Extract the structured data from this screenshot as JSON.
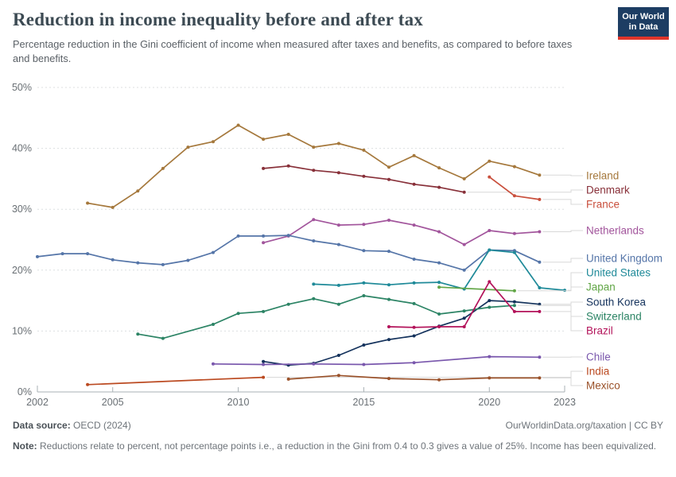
{
  "header": {
    "title": "Reduction in income inequality before and after tax",
    "subtitle": "Percentage reduction in the Gini coefficient of income when measured after taxes and benefits, as compared to before taxes and benefits.",
    "logo": {
      "line1": "Our World",
      "line2": "in Data"
    }
  },
  "footer": {
    "datasource_label": "Data source:",
    "datasource_value": " OECD (2024)",
    "link": "OurWorldinData.org/taxation",
    "separator": " | ",
    "license": "CC BY",
    "note_label": "Note:",
    "note_text": " Reductions relate to percent, not percentage points i.e., a reduction in the Gini from 0.4 to 0.3 gives a value of 25%. Income has been equivalized."
  },
  "chart_data": {
    "type": "line",
    "title": "Reduction in income inequality before and after tax",
    "xlabel": "",
    "ylabel": "",
    "xlim": [
      2002,
      2023
    ],
    "ylim": [
      0,
      50
    ],
    "x_ticks": [
      2002,
      2005,
      2010,
      2015,
      2020,
      2023
    ],
    "y_ticks": [
      0,
      10,
      20,
      30,
      40,
      50
    ],
    "y_tick_suffix": "%",
    "grid": "horizontal-dashed",
    "legend_position": "right",
    "series": [
      {
        "name": "Ireland",
        "color": "#A5783C",
        "points": [
          [
            2004,
            31.0
          ],
          [
            2005,
            30.3
          ],
          [
            2006,
            33.0
          ],
          [
            2007,
            36.7
          ],
          [
            2008,
            40.2
          ],
          [
            2009,
            41.1
          ],
          [
            2010,
            43.8
          ],
          [
            2011,
            41.5
          ],
          [
            2012,
            42.3
          ],
          [
            2013,
            40.2
          ],
          [
            2014,
            40.8
          ],
          [
            2015,
            39.7
          ],
          [
            2016,
            36.9
          ],
          [
            2017,
            38.8
          ],
          [
            2018,
            36.8
          ],
          [
            2019,
            35.0
          ],
          [
            2020,
            37.9
          ],
          [
            2021,
            37.0
          ],
          [
            2022,
            35.6
          ]
        ]
      },
      {
        "name": "Denmark",
        "color": "#883039",
        "points": [
          [
            2011,
            36.7
          ],
          [
            2012,
            37.1
          ],
          [
            2013,
            36.4
          ],
          [
            2014,
            36.0
          ],
          [
            2015,
            35.4
          ],
          [
            2016,
            34.9
          ],
          [
            2017,
            34.1
          ],
          [
            2018,
            33.6
          ],
          [
            2019,
            32.8
          ]
        ]
      },
      {
        "name": "France",
        "color": "#C94F3C",
        "points": [
          [
            2020,
            35.3
          ],
          [
            2021,
            32.2
          ],
          [
            2022,
            31.6
          ]
        ]
      },
      {
        "name": "Netherlands",
        "color": "#A2559C",
        "points": [
          [
            2011,
            24.5
          ],
          [
            2012,
            25.6
          ],
          [
            2013,
            28.3
          ],
          [
            2014,
            27.4
          ],
          [
            2015,
            27.5
          ],
          [
            2016,
            28.2
          ],
          [
            2017,
            27.4
          ],
          [
            2018,
            26.3
          ],
          [
            2019,
            24.2
          ],
          [
            2020,
            26.5
          ],
          [
            2021,
            26.0
          ],
          [
            2022,
            26.3
          ]
        ]
      },
      {
        "name": "United Kingdom",
        "color": "#5575A8",
        "points": [
          [
            2002,
            22.2
          ],
          [
            2003,
            22.7
          ],
          [
            2004,
            22.7
          ],
          [
            2005,
            21.7
          ],
          [
            2006,
            21.2
          ],
          [
            2007,
            20.9
          ],
          [
            2008,
            21.6
          ],
          [
            2009,
            22.9
          ],
          [
            2010,
            25.6
          ],
          [
            2011,
            25.6
          ],
          [
            2012,
            25.7
          ],
          [
            2013,
            24.8
          ],
          [
            2014,
            24.2
          ],
          [
            2015,
            23.2
          ],
          [
            2016,
            23.1
          ],
          [
            2017,
            21.8
          ],
          [
            2018,
            21.2
          ],
          [
            2019,
            20.0
          ],
          [
            2020,
            23.3
          ],
          [
            2021,
            23.2
          ],
          [
            2022,
            21.3
          ]
        ]
      },
      {
        "name": "United States",
        "color": "#1F8A99",
        "points": [
          [
            2013,
            17.7
          ],
          [
            2014,
            17.5
          ],
          [
            2015,
            17.9
          ],
          [
            2016,
            17.6
          ],
          [
            2017,
            17.9
          ],
          [
            2018,
            18.0
          ],
          [
            2019,
            16.9
          ],
          [
            2020,
            23.3
          ],
          [
            2021,
            22.9
          ],
          [
            2022,
            17.1
          ],
          [
            2023,
            16.7
          ]
        ]
      },
      {
        "name": "Japan",
        "color": "#62A647",
        "points": [
          [
            2018,
            17.2
          ],
          [
            2021,
            16.6
          ]
        ]
      },
      {
        "name": "South Korea",
        "color": "#14325C",
        "points": [
          [
            2011,
            5.0
          ],
          [
            2012,
            4.4
          ],
          [
            2013,
            4.7
          ],
          [
            2014,
            6.0
          ],
          [
            2015,
            7.7
          ],
          [
            2016,
            8.6
          ],
          [
            2017,
            9.2
          ],
          [
            2018,
            10.8
          ],
          [
            2019,
            12.1
          ],
          [
            2020,
            15.0
          ],
          [
            2021,
            14.8
          ],
          [
            2022,
            14.4
          ]
        ]
      },
      {
        "name": "Switzerland",
        "color": "#2C8465",
        "points": [
          [
            2006,
            9.5
          ],
          [
            2007,
            8.8
          ],
          [
            2009,
            11.1
          ],
          [
            2010,
            12.9
          ],
          [
            2011,
            13.2
          ],
          [
            2012,
            14.4
          ],
          [
            2013,
            15.3
          ],
          [
            2014,
            14.4
          ],
          [
            2015,
            15.8
          ],
          [
            2016,
            15.2
          ],
          [
            2017,
            14.5
          ],
          [
            2018,
            12.8
          ],
          [
            2019,
            13.3
          ],
          [
            2020,
            13.9
          ],
          [
            2021,
            14.2
          ]
        ]
      },
      {
        "name": "Brazil",
        "color": "#B3135A",
        "points": [
          [
            2016,
            10.7
          ],
          [
            2017,
            10.6
          ],
          [
            2018,
            10.7
          ],
          [
            2019,
            10.7
          ],
          [
            2020,
            18.1
          ],
          [
            2021,
            13.2
          ],
          [
            2022,
            13.2
          ]
        ]
      },
      {
        "name": "Chile",
        "color": "#7A58AD",
        "points": [
          [
            2009,
            4.6
          ],
          [
            2011,
            4.5
          ],
          [
            2013,
            4.6
          ],
          [
            2015,
            4.5
          ],
          [
            2017,
            4.8
          ],
          [
            2020,
            5.8
          ],
          [
            2022,
            5.7
          ]
        ]
      },
      {
        "name": "India",
        "color": "#BB4A21",
        "points": [
          [
            2004,
            1.2
          ],
          [
            2011,
            2.4
          ]
        ]
      },
      {
        "name": "Mexico",
        "color": "#9A5129",
        "points": [
          [
            2012,
            2.1
          ],
          [
            2014,
            2.7
          ],
          [
            2016,
            2.2
          ],
          [
            2018,
            2.0
          ],
          [
            2020,
            2.3
          ],
          [
            2022,
            2.3
          ]
        ]
      }
    ]
  }
}
